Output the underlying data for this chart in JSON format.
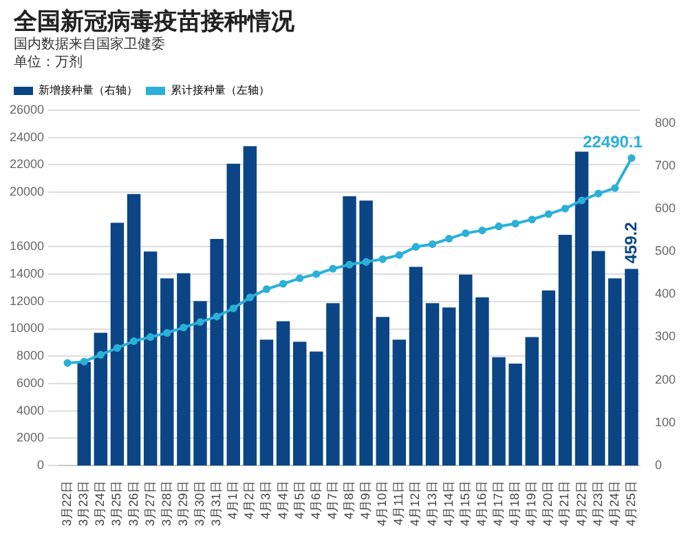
{
  "chart_data": {
    "type": "bar",
    "title": "全国新冠病毒疫苗接种情况",
    "subtitle": "国内数据来自国家卫健委",
    "annotations": [
      "单位：万剂"
    ],
    "categories": [
      "3月22日",
      "3月23日",
      "3月24日",
      "3月25日",
      "3月26日",
      "3月27日",
      "3月28日",
      "3月29日",
      "3月30日",
      "3月31日",
      "4月1日",
      "4月2日",
      "4月3日",
      "4月4日",
      "4月5日",
      "4月6日",
      "4月7日",
      "4月8日",
      "4月9日",
      "4月10日",
      "4月11日",
      "4月12日",
      "4月13日",
      "4月14日",
      "4月15日",
      "4月16日",
      "4月17日",
      "4月18日",
      "4月19日",
      "4月20日",
      "4月21日",
      "4月22日",
      "4月23日",
      "4月24日",
      "4月25日"
    ],
    "series": [
      {
        "name": "新增接种量（右轴）",
        "axis": "y2",
        "color": "#0b4586",
        "values": [
          null,
          242,
          310,
          567,
          634,
          500,
          437,
          449,
          384,
          529,
          705,
          746,
          294,
          337,
          289,
          266,
          379,
          629,
          619,
          347,
          294,
          464,
          379,
          369,
          446,
          393,
          253,
          238,
          300,
          409,
          539,
          733,
          501,
          437,
          459.2
        ],
        "value_labels": [
          null,
          null,
          null,
          null,
          null,
          null,
          null,
          null,
          null,
          null,
          null,
          null,
          null,
          null,
          null,
          null,
          null,
          null,
          null,
          null,
          null,
          null,
          null,
          null,
          null,
          null,
          null,
          null,
          null,
          null,
          null,
          null,
          null,
          null,
          "459.2"
        ]
      },
      {
        "name": "累计接种量（左轴）",
        "type": "line",
        "color": "#2bb0d8",
        "marker": "circle",
        "values": [
          7500,
          7600,
          8100,
          8600,
          9100,
          9400,
          9700,
          10100,
          10500,
          10900,
          11500,
          12300,
          12900,
          13300,
          13700,
          14000,
          14400,
          14700,
          14900,
          15100,
          15400,
          16000,
          16200,
          16600,
          17000,
          17200,
          17500,
          17700,
          18000,
          18400,
          18800,
          19400,
          19900,
          20300,
          22490.1
        ],
        "value_labels": [
          null,
          null,
          null,
          null,
          null,
          null,
          null,
          null,
          null,
          null,
          null,
          null,
          null,
          null,
          null,
          null,
          null,
          null,
          null,
          null,
          null,
          null,
          null,
          null,
          null,
          null,
          null,
          null,
          null,
          null,
          null,
          null,
          null,
          null,
          "22490.1"
        ]
      }
    ],
    "ylim": [
      0,
      26000
    ],
    "yticks": [
      0,
      2000,
      4000,
      6000,
      8000,
      10000,
      12000,
      14000,
      16000,
      20000,
      22000,
      24000,
      26000
    ],
    "y2lim": [
      0,
      830
    ],
    "y2ticks": [
      0,
      100,
      200,
      300,
      400,
      500,
      600,
      700,
      800
    ],
    "grid": "y",
    "legend": "top left"
  }
}
